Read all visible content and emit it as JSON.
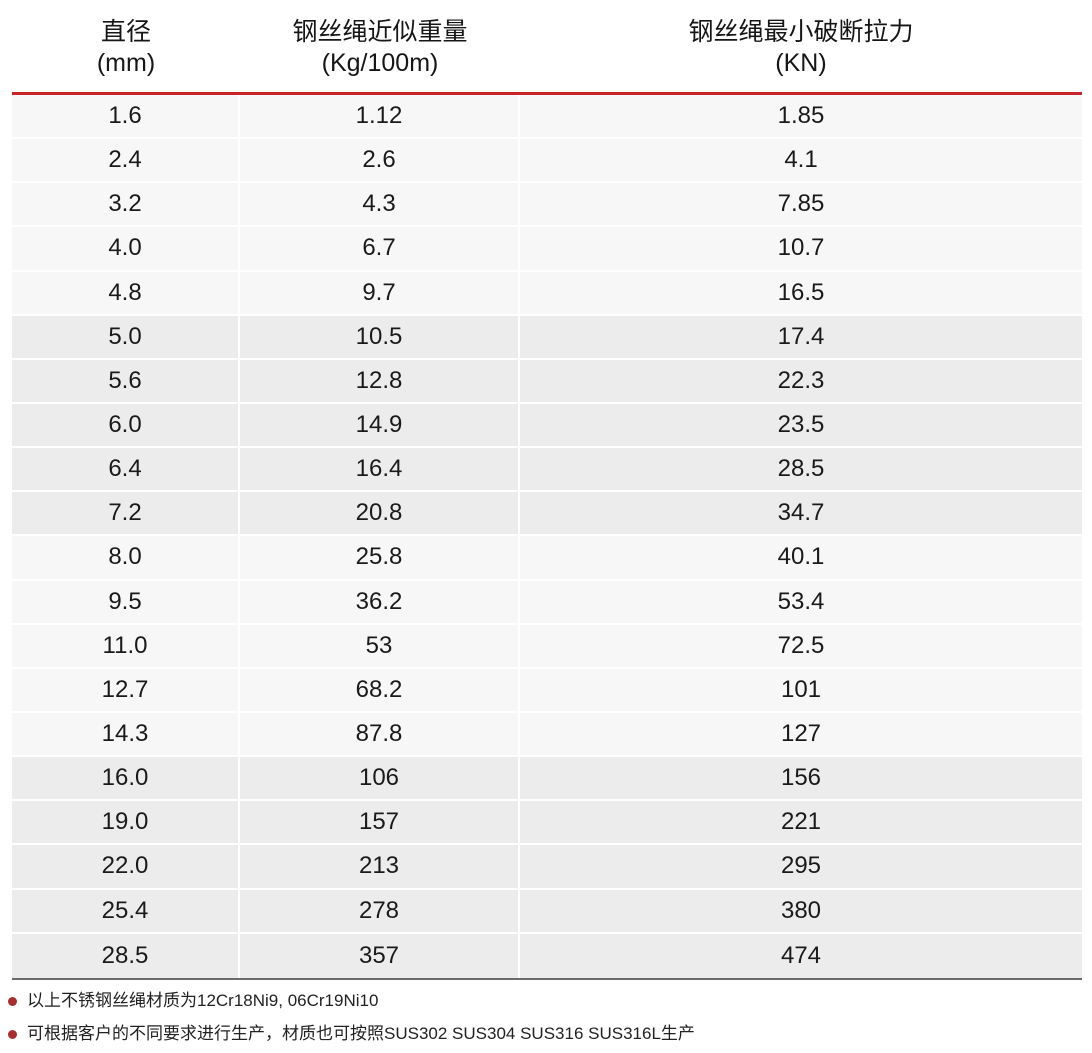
{
  "table": {
    "headers": [
      {
        "line1": "直径",
        "line2": "(mm)"
      },
      {
        "line1": "钢丝绳近似重量",
        "line2": "(Kg/100m)"
      },
      {
        "line1": "钢丝绳最小破断拉力",
        "line2": "(KN)"
      }
    ],
    "rows": [
      [
        "1.6",
        "1.12",
        "1.85"
      ],
      [
        "2.4",
        "2.6",
        "4.1"
      ],
      [
        "3.2",
        "4.3",
        "7.85"
      ],
      [
        "4.0",
        "6.7",
        "10.7"
      ],
      [
        "4.8",
        "9.7",
        "16.5"
      ],
      [
        "5.0",
        "10.5",
        "17.4"
      ],
      [
        "5.6",
        "12.8",
        "22.3"
      ],
      [
        "6.0",
        "14.9",
        "23.5"
      ],
      [
        "6.4",
        "16.4",
        "28.5"
      ],
      [
        "7.2",
        "20.8",
        "34.7"
      ],
      [
        "8.0",
        "25.8",
        "40.1"
      ],
      [
        "9.5",
        "36.2",
        "53.4"
      ],
      [
        "11.0",
        "53",
        "72.5"
      ],
      [
        "12.7",
        "68.2",
        "101"
      ],
      [
        "14.3",
        "87.8",
        "127"
      ],
      [
        "16.0",
        "106",
        "156"
      ],
      [
        "19.0",
        "157",
        "221"
      ],
      [
        "22.0",
        "213",
        "295"
      ],
      [
        "25.4",
        "278",
        "380"
      ],
      [
        "28.5",
        "357",
        "474"
      ]
    ]
  },
  "notes": [
    "以上不锈钢丝绳材质为12Cr18Ni9, 06Cr19Ni10",
    "可根据客户的不同要求进行生产，材质也可按照SUS302 SUS304 SUS316 SUS316L生产"
  ],
  "colors": {
    "header_rule": "#c9232e",
    "bottom_rule": "#6b6b6b",
    "row_light": "#f7f7f7",
    "row_dark": "#ececec",
    "note_bullet": "#a53030"
  }
}
